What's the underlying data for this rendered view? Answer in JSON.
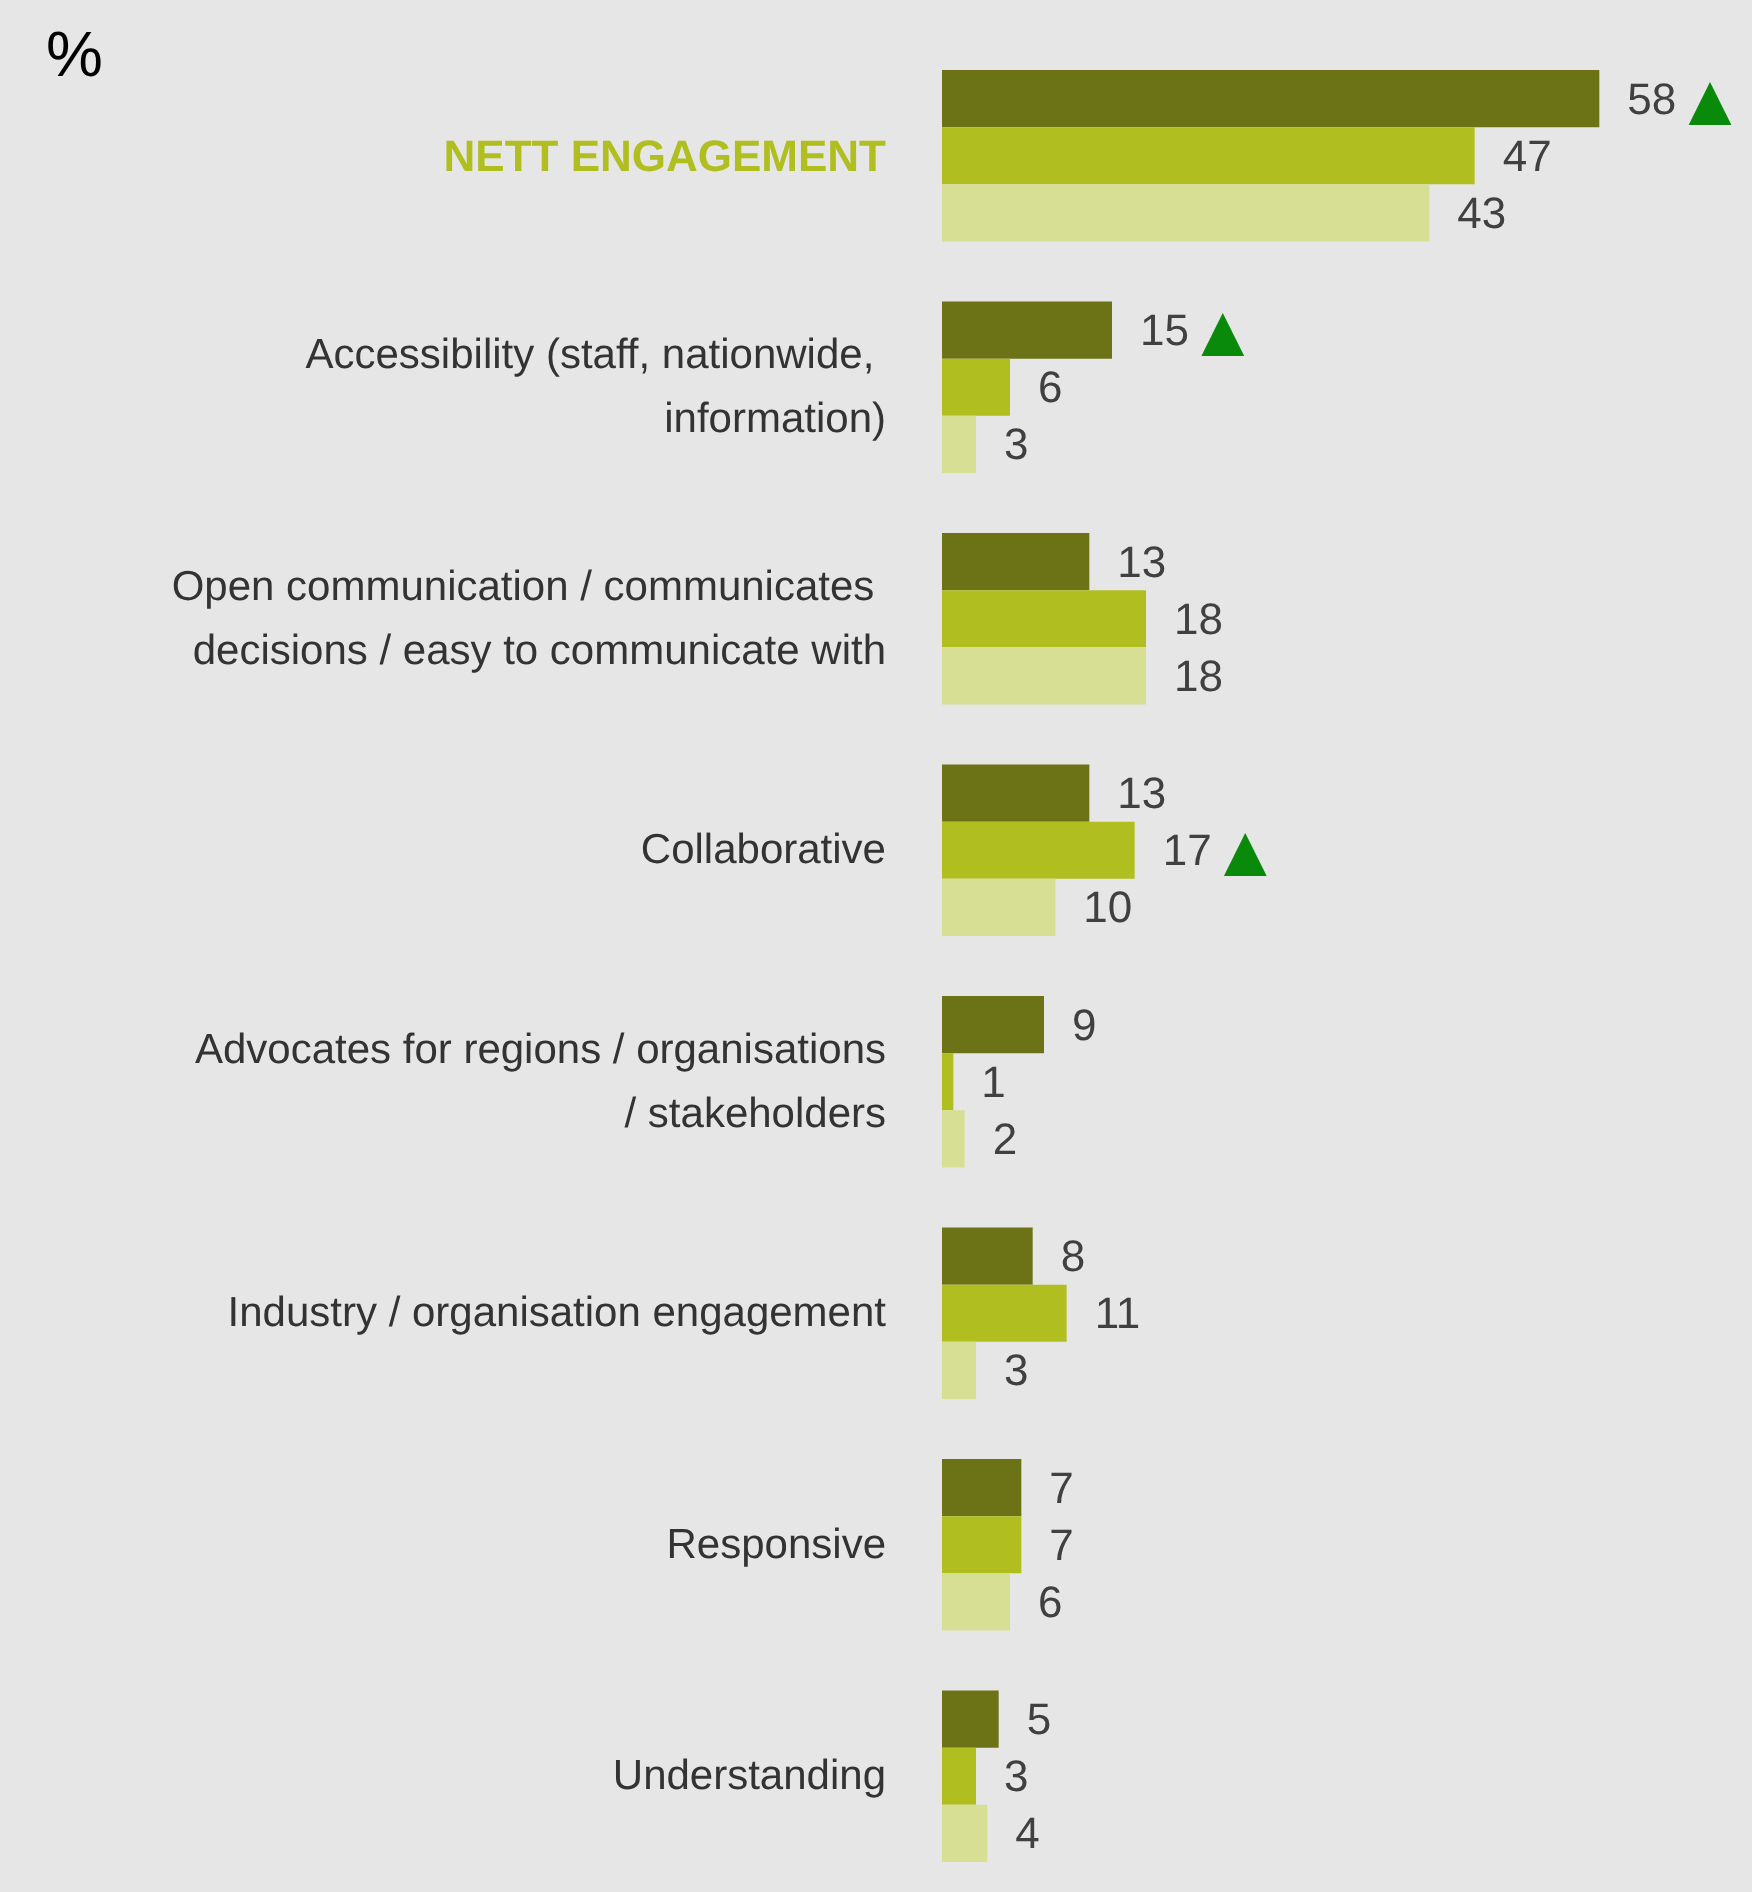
{
  "chart_data": {
    "type": "bar",
    "orientation": "horizontal",
    "title": "%",
    "categories": [
      "NETT ENGAGEMENT",
      "Accessibility (staff, nationwide, information)",
      "Open communication / communicates decisions / easy to communicate with",
      "Collaborative",
      "Advocates for regions / organisations / stakeholders",
      "Industry / organisation engagement",
      "Responsive",
      "Understanding"
    ],
    "tick_labels": false,
    "series": [
      {
        "color": "#6b7316",
        "values": [
          58,
          15,
          13,
          13,
          9,
          8,
          7,
          5
        ],
        "value_labels": [
          "58 ▲",
          "15 ▲",
          "13",
          "13",
          "9",
          "8",
          "7",
          "5"
        ]
      },
      {
        "color": "#b0bf1f",
        "values": [
          47,
          6,
          18,
          17,
          1,
          11,
          7,
          3
        ],
        "value_labels": [
          "47",
          "6",
          "18",
          "17 ▲",
          "1",
          "11",
          "7",
          "3"
        ]
      },
      {
        "color": "#d7df94",
        "values": [
          43,
          3,
          18,
          10,
          2,
          3,
          6,
          4
        ],
        "value_labels": [
          "43",
          "3",
          "18",
          "10",
          "2",
          "3",
          "6",
          "4"
        ]
      }
    ]
  }
}
